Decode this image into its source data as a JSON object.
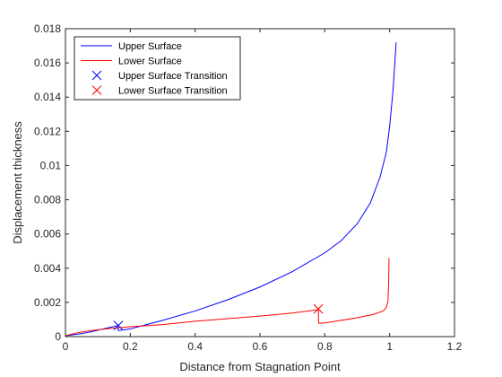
{
  "chart_data": {
    "type": "line",
    "title": "",
    "xlabel": "Distance from Stagnation Point",
    "ylabel": "Displacement thickness",
    "xlim": [
      0,
      1.2
    ],
    "ylim": [
      0,
      0.018
    ],
    "xticks": [
      0,
      0.2,
      0.4,
      0.6,
      0.8,
      1,
      1.2
    ],
    "yticks": [
      0,
      0.002,
      0.004,
      0.006,
      0.008,
      0.01,
      0.012,
      0.014,
      0.016,
      0.018
    ],
    "xtick_labels": [
      "0",
      "0.2",
      "0.4",
      "0.6",
      "0.8",
      "1",
      "1.2"
    ],
    "ytick_labels": [
      "0",
      "0.002",
      "0.004",
      "0.006",
      "0.008",
      "0.01",
      "0.012",
      "0.014",
      "0.016",
      "0.018"
    ],
    "grid": false,
    "legend_position": "top-left",
    "series": [
      {
        "name": "Upper Surface",
        "kind": "line",
        "color": "#0000ff",
        "x": [
          0,
          0.02,
          0.05,
          0.08,
          0.11,
          0.14,
          0.16,
          0.163,
          0.18,
          0.2,
          0.25,
          0.3,
          0.4,
          0.5,
          0.6,
          0.7,
          0.8,
          0.85,
          0.9,
          0.94,
          0.97,
          0.99,
          1.0,
          1.01,
          1.015,
          1.02
        ],
        "y": [
          5e-05,
          0.0001,
          0.00018,
          0.00028,
          0.00042,
          0.00055,
          0.00064,
          0.00035,
          0.0004,
          0.00045,
          0.0007,
          0.00095,
          0.0015,
          0.00215,
          0.0029,
          0.0038,
          0.0049,
          0.0056,
          0.0066,
          0.0078,
          0.0093,
          0.0108,
          0.0123,
          0.0143,
          0.0157,
          0.0172
        ]
      },
      {
        "name": "Lower Surface",
        "kind": "line",
        "color": "#ff0000",
        "x": [
          0,
          0.03,
          0.06,
          0.1,
          0.15,
          0.2,
          0.3,
          0.4,
          0.5,
          0.6,
          0.7,
          0.78,
          0.781,
          0.8,
          0.85,
          0.9,
          0.95,
          0.98,
          0.99,
          0.995,
          0.997,
          0.998
        ],
        "y": [
          5e-05,
          0.0002,
          0.0003,
          0.0004,
          0.0005,
          0.00058,
          0.0007,
          0.0009,
          0.00105,
          0.0012,
          0.00138,
          0.00158,
          0.00078,
          0.0008,
          0.00095,
          0.0011,
          0.0013,
          0.0015,
          0.0017,
          0.0021,
          0.0032,
          0.0046
        ]
      },
      {
        "name": "Upper Surface Transition",
        "kind": "marker",
        "color": "#0000ff",
        "x": [
          0.163
        ],
        "y": [
          0.00065
        ]
      },
      {
        "name": "Lower Surface Transition",
        "kind": "marker",
        "color": "#ff0000",
        "x": [
          0.78
        ],
        "y": [
          0.00162
        ]
      }
    ]
  }
}
